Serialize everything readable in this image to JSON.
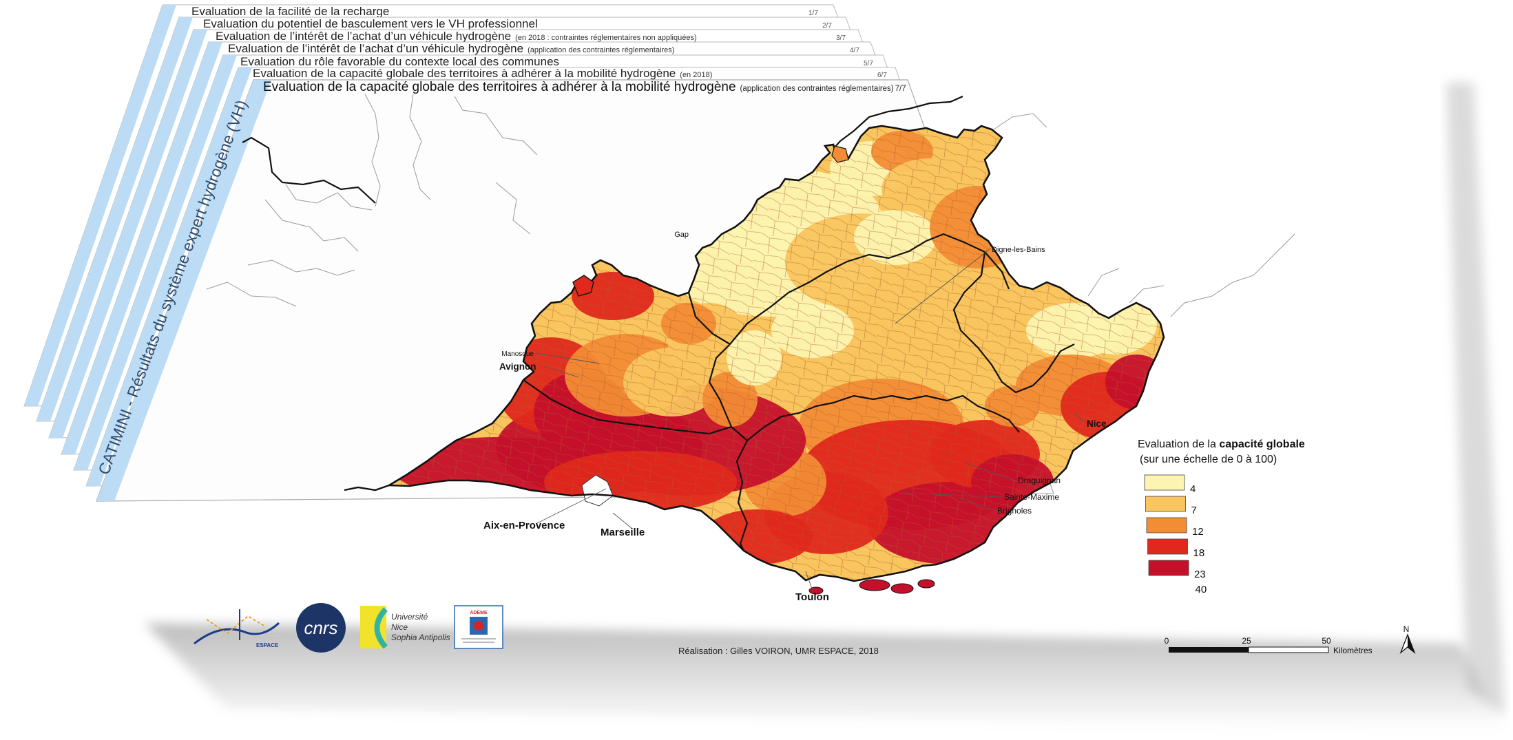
{
  "stack_sheets": [
    {
      "title": "Evaluation de la facilité de la recharge",
      "page": "1/7",
      "sidebar": "CATIMINI - Résultats du système expert hydrogène (VH)"
    },
    {
      "title": "Evaluation du potentiel de basculement vers le VH professionnel",
      "page": "2/7",
      "sidebar": "CATIMINI - Résultats du système expert hydrogène (VH)"
    },
    {
      "title": "Evaluation de l’intérêt de l’achat d’un véhicule hydrogène",
      "subtitle": "(en 2018 : contraintes réglementaires non appliquées)",
      "page": "3/7",
      "sidebar": "CATIMINI - Résultats du système expert hydrogène (VH)"
    },
    {
      "title": "Evaluation de l’intérêt de l’achat d’un véhicule hydrogène",
      "subtitle": "(application des contraintes réglementaires)",
      "page": "4/7",
      "sidebar": "CATIMINI - Résultats du système expert hydrogène (VH)"
    },
    {
      "title": "Evaluation du rôle favorable du contexte local des communes",
      "page": "5/7",
      "sidebar": "CATIMINI - Résultats du système expert hydrogène (VH)"
    },
    {
      "title": "Evaluation de la capacité globale des territoires à adhérer à la mobilité hydrogène",
      "subtitle": "(en 2018)",
      "page": "6/7",
      "sidebar": "CATIMINI - Résultats du système expert hydrogène (VH)"
    }
  ],
  "front_sheet": {
    "title": "Evaluation de la capacité globale des territoires à adhérer à la mobilité hydrogène",
    "subtitle": "(application des contraintes réglementaires)",
    "page": "7/7",
    "sidebar": "CATIMINI - Résultats du système expert hydrogène (VH)",
    "credit": "Réalisation : Gilles VOIRON, UMR ESPACE, 2018"
  },
  "map": {
    "cities": [
      {
        "id": "gap",
        "label": "Gap"
      },
      {
        "id": "digne",
        "label": "Digne-les-Bains"
      },
      {
        "id": "manosque",
        "label": "Manosque"
      },
      {
        "id": "avignon",
        "label": "Avignon"
      },
      {
        "id": "nice",
        "label": "Nice"
      },
      {
        "id": "draguignan",
        "label": "Draguignan"
      },
      {
        "id": "sainte-maxime",
        "label": "Sainte-Maxime"
      },
      {
        "id": "brignoles",
        "label": "Brignoles"
      },
      {
        "id": "aix",
        "label": "Aix-en-Provence"
      },
      {
        "id": "marseille",
        "label": "Marseille"
      },
      {
        "id": "toulon",
        "label": "Toulon"
      }
    ],
    "legend": {
      "title_prefix": "Evaluation de la ",
      "title_bold": "capacité globale",
      "subtitle": "(sur une échelle de 0 à 100)",
      "classes": [
        {
          "value": "4",
          "color": "#fcf4b0"
        },
        {
          "value": "7",
          "color": "#f9c55e"
        },
        {
          "value": "12",
          "color": "#f28c35"
        },
        {
          "value": "18",
          "color": "#e0281c"
        },
        {
          "value": "23",
          "color": "#c5102b"
        },
        {
          "value": "40",
          "color": ""
        }
      ]
    },
    "scalebar": {
      "ticks": [
        "0",
        "25",
        "50"
      ],
      "unit": "Kilomètres"
    },
    "north": "N"
  },
  "logos": [
    {
      "id": "espace",
      "label": "ESPACE"
    },
    {
      "id": "cnrs",
      "label": "cnrs"
    },
    {
      "id": "unice",
      "lines": [
        "Université",
        "Nice",
        "Sophia Antipolis"
      ]
    },
    {
      "id": "ademe",
      "label": "ADEME"
    }
  ],
  "colors": {
    "sidebar": "#bcdcf5",
    "border": "#111111",
    "sea": "#ffffff"
  }
}
